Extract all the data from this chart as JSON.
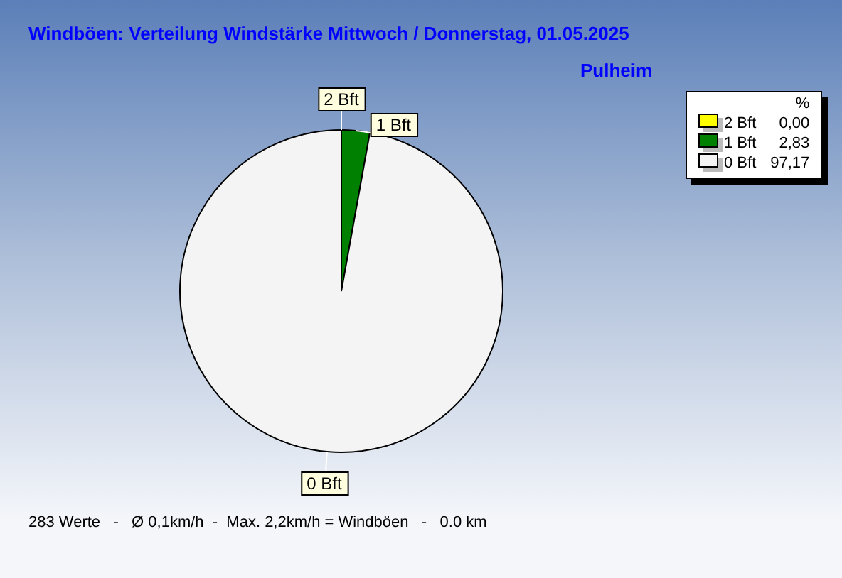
{
  "chart_data": {
    "type": "pie",
    "title": "Windböen: Verteilung Windstärke Mittwoch / Donnerstag, 01.05.2025",
    "subtitle": "Pulheim",
    "legend_title": "%",
    "legend": "top right",
    "categories": [
      "2 Bft",
      "1 Bft",
      "0 Bft"
    ],
    "values": [
      0.0,
      2.83,
      97.17
    ],
    "value_labels": [
      "0,00",
      "2,83",
      "97,17"
    ],
    "colors": [
      "#ffff00",
      "#008000",
      "#f4f4f4"
    ],
    "annotations": [
      "283 Werte   -   Ø 0,1km/h  -  Max. 2,2km/h = Windböen   -   0.0 km"
    ]
  }
}
